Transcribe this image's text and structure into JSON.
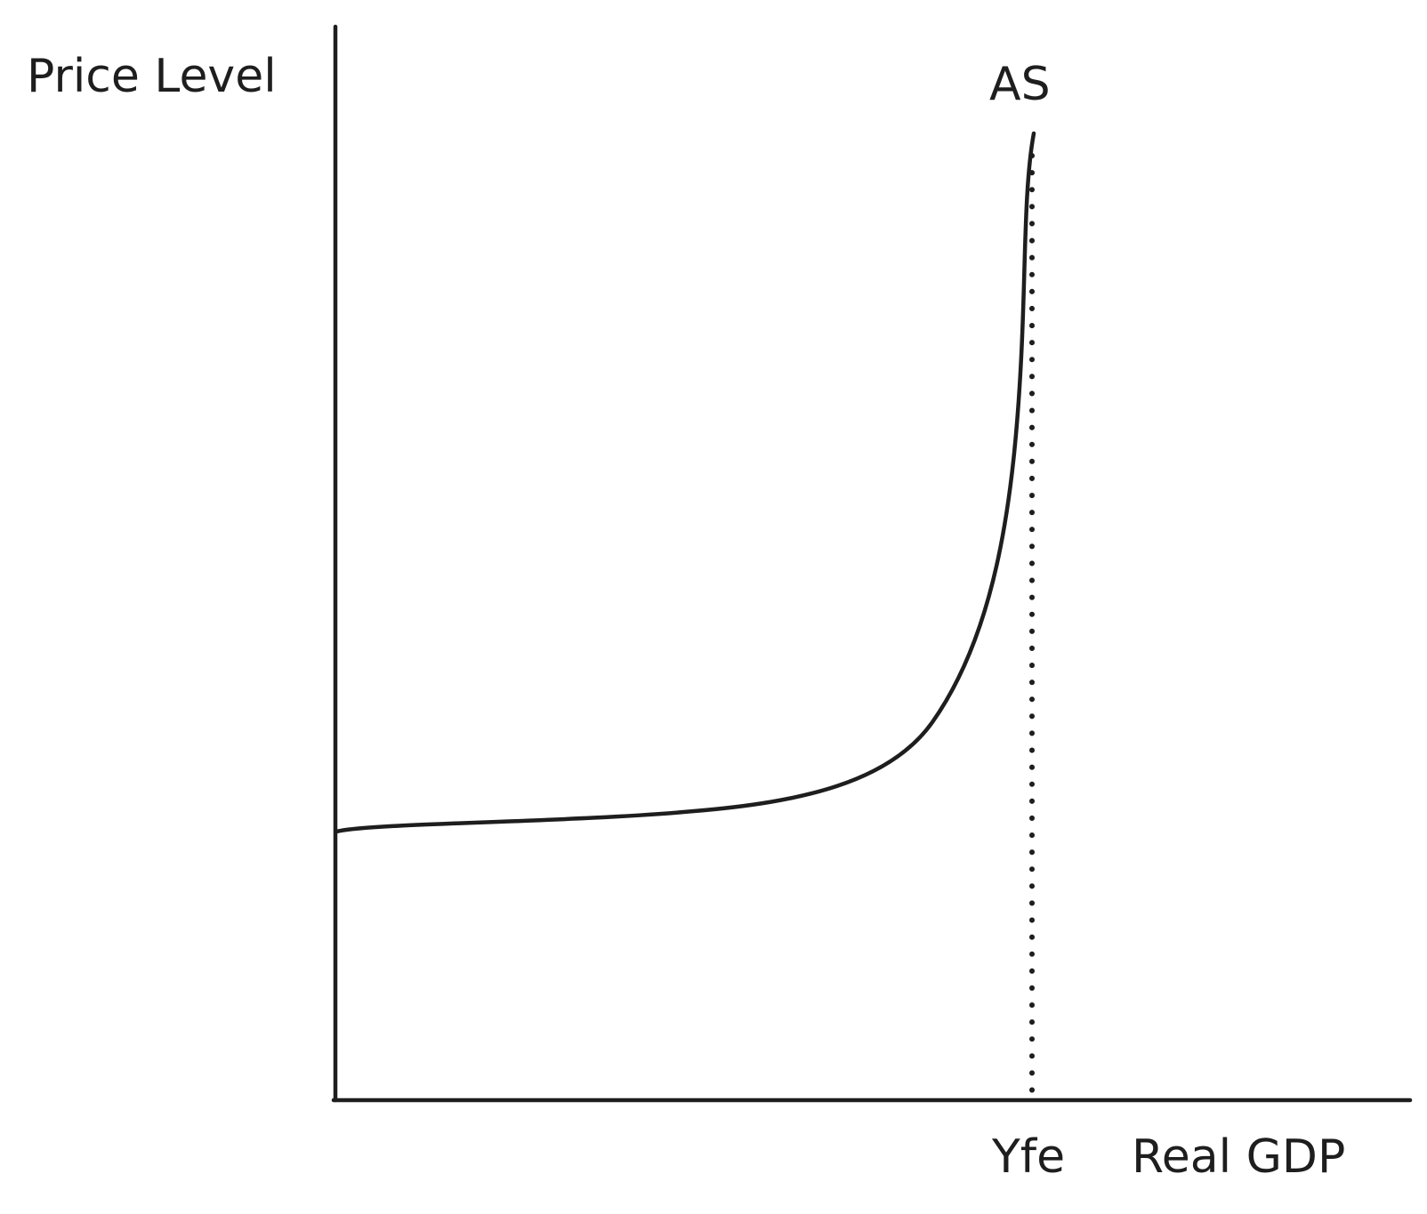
{
  "diagram": {
    "y_axis_label": "Price Level",
    "x_axis_label": "Real GDP",
    "curve_label": "AS",
    "marker_label": "Yfe",
    "colors": {
      "ink": "#1e1e1e",
      "background": "#ffffff"
    }
  }
}
